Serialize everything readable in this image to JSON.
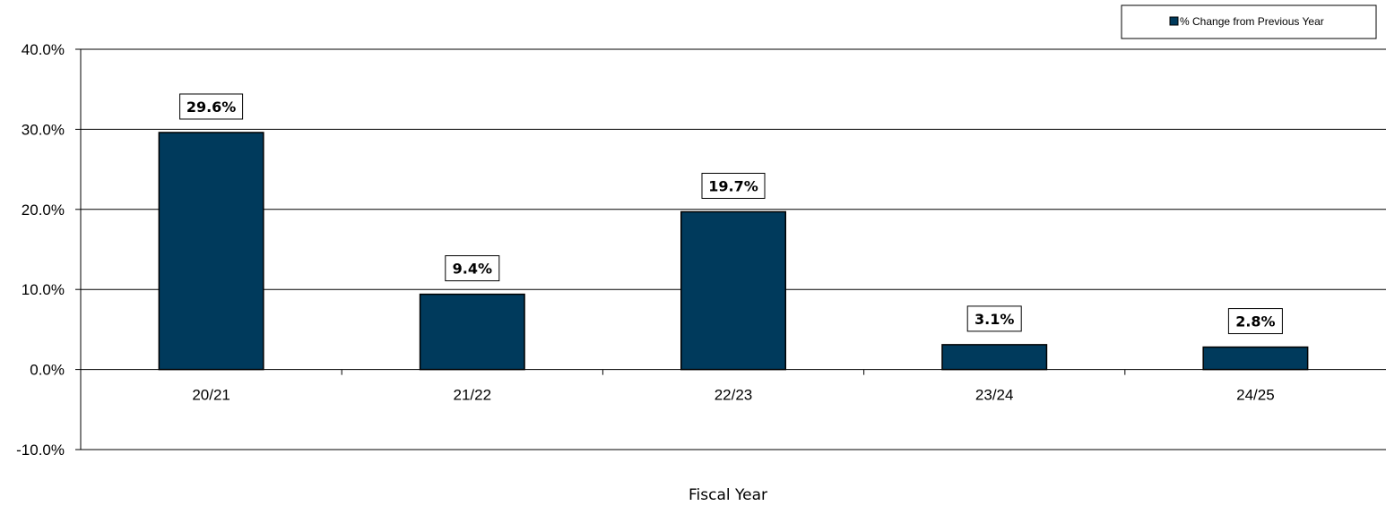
{
  "chart_data": {
    "type": "bar",
    "categories": [
      "20/21",
      "21/22",
      "22/23",
      "23/24",
      "24/25"
    ],
    "series": [
      {
        "name": "% Change from Previous Year",
        "values": [
          29.6,
          9.4,
          19.7,
          3.1,
          2.8
        ]
      }
    ],
    "data_labels": [
      "29.6%",
      "9.4%",
      "19.7%",
      "3.1%",
      "2.8%"
    ],
    "y_ticks": [
      "40.0%",
      "30.0%",
      "20.0%",
      "10.0%",
      "0.0%",
      "-10.0%"
    ],
    "ylim": [
      -10,
      40
    ],
    "xlabel": "Fiscal Year",
    "ylabel": "",
    "title": "",
    "grid": true,
    "legend_position": "top-right",
    "bar_color": "#003a5c"
  }
}
